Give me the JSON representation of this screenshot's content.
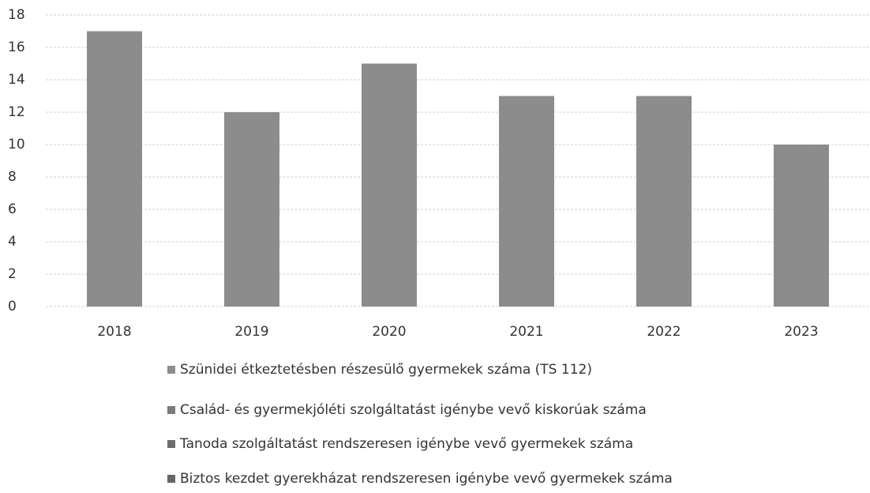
{
  "chart_data": {
    "type": "bar",
    "categories": [
      "2018",
      "2019",
      "2020",
      "2021",
      "2022",
      "2023"
    ],
    "series": [
      {
        "name": "Szünidei étkeztetésben részesülő gyermekek száma (TS 112)",
        "color": "#8c8c8c",
        "values": [
          17,
          12,
          15,
          13,
          13,
          10
        ]
      },
      {
        "name": "Család- és gyermekjóléti szolgáltatást igénybe vevő kiskorúak száma",
        "color": "#7a7a7a",
        "values": [
          null,
          null,
          null,
          null,
          null,
          null
        ]
      },
      {
        "name": "Tanoda szolgáltatást rendszeresen igénybe vevő gyermekek száma",
        "color": "#6e6e6e",
        "values": [
          null,
          null,
          null,
          null,
          null,
          null
        ]
      },
      {
        "name": "Biztos kezdet gyerekházat rendszeresen igénybe vevő gyermekek száma",
        "color": "#666666",
        "values": [
          null,
          null,
          null,
          null,
          null,
          null
        ]
      }
    ],
    "ylim": [
      0,
      18
    ],
    "yticks": [
      0,
      2,
      4,
      6,
      8,
      10,
      12,
      14,
      16,
      18
    ],
    "grid": true
  }
}
